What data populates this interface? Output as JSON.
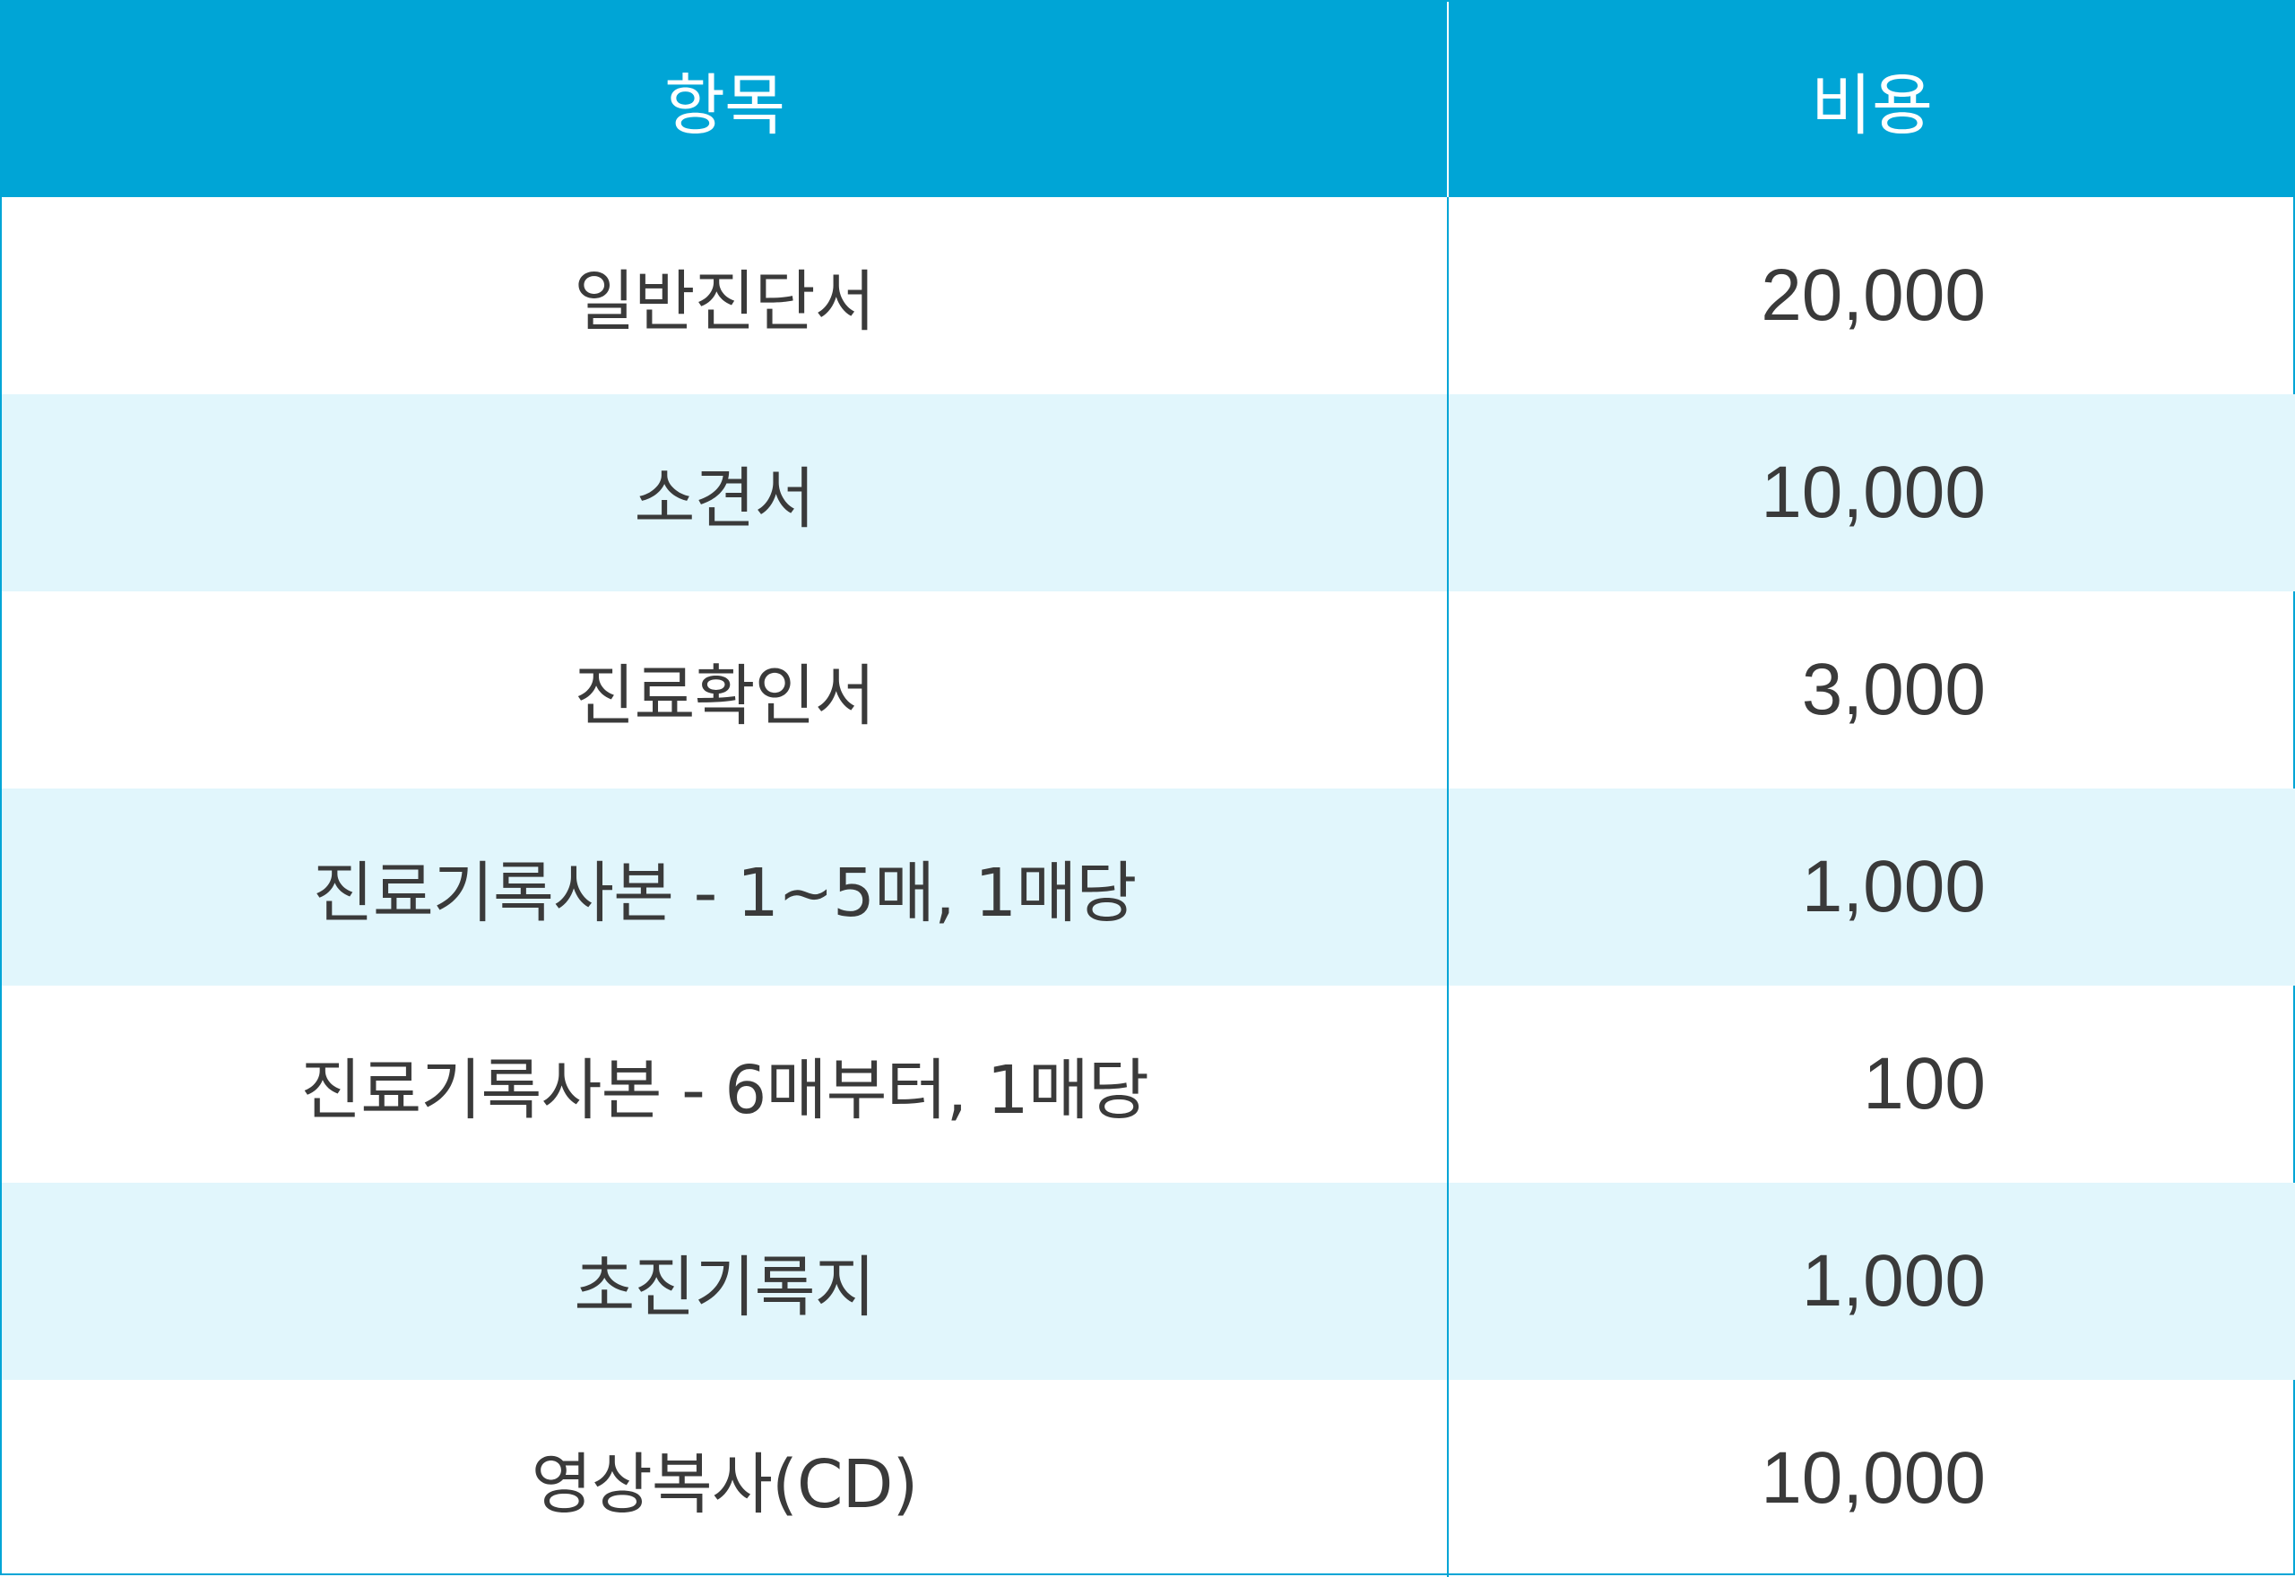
{
  "table": {
    "headers": {
      "item": "항목",
      "cost": "비용"
    },
    "rows": [
      {
        "item": "일반진단서",
        "cost": "20,000"
      },
      {
        "item": "소견서",
        "cost": "10,000"
      },
      {
        "item": "진료확인서",
        "cost": "3,000"
      },
      {
        "item": "진료기록사본 - 1∼5매, 1매당",
        "cost": "1,000"
      },
      {
        "item": "진료기록사본 - 6매부터, 1매당",
        "cost": "100"
      },
      {
        "item": "초진기록지",
        "cost": "1,000"
      },
      {
        "item": "영상복사(CD)",
        "cost": "10,000"
      }
    ]
  },
  "colors": {
    "header_bg": "#00a5d6",
    "header_text": "#ffffff",
    "alt_row_bg": "#e1f6fc",
    "row_bg": "#ffffff",
    "text": "#3a3a3a"
  }
}
